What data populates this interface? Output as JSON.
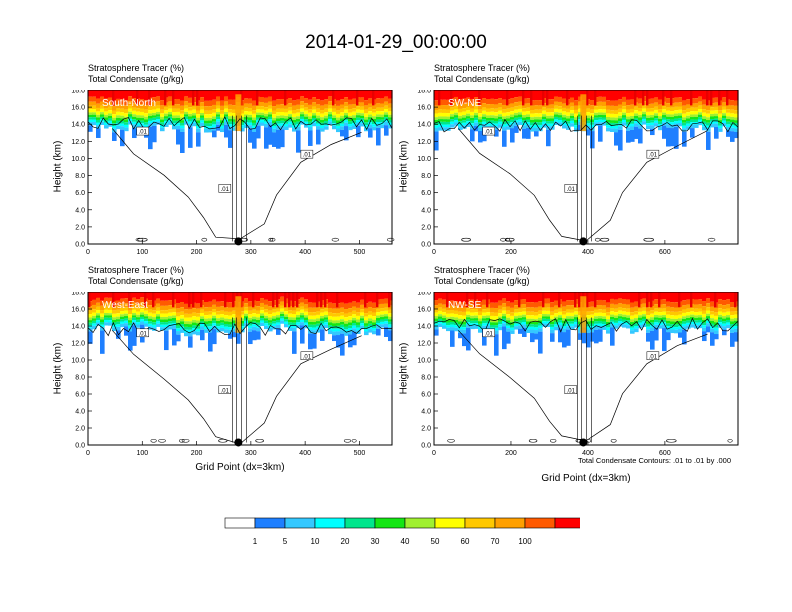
{
  "title": "2014-01-29_00:00:00",
  "header_line1": "Stratosphere Tracer   (%)",
  "header_line2": "Total Condensate   (g/kg)",
  "y_axis_label": "Height (km)",
  "x_axis_label": "Grid Point (dx=3km)",
  "contour_note": "Total Condensate Contours: .01 to .01 by .000",
  "contour_label": ".01",
  "colors": [
    "#ffffff",
    "#1e7fff",
    "#34c8ff",
    "#00ffff",
    "#00e68c",
    "#14e614",
    "#a0f030",
    "#ffff00",
    "#ffc800",
    "#ffa000",
    "#ff5a00",
    "#ff0000"
  ],
  "chart_data": [
    {
      "type": "heatmap",
      "panel_label": "South-North",
      "x_ticks": [
        0,
        100,
        200,
        300,
        400,
        500
      ],
      "xlim": [
        0,
        560
      ],
      "y_ticks": [
        "0.0",
        "2.0",
        "4.0",
        "6.0",
        "8.0",
        "10.0",
        "12.0",
        "14.0",
        "16.0",
        "18.0"
      ],
      "ylim": [
        0,
        18
      ],
      "marker_x": 277,
      "cloud_top_km": 14.5
    },
    {
      "type": "heatmap",
      "panel_label": "SW-NE",
      "x_ticks": [
        0,
        200,
        400,
        600
      ],
      "xlim": [
        0,
        790
      ],
      "y_ticks": [
        "0.0",
        "2.0",
        "4.0",
        "6.0",
        "8.0",
        "10.0",
        "12.0",
        "14.0",
        "16.0",
        "18.0"
      ],
      "ylim": [
        0,
        18
      ],
      "marker_x": 388,
      "cloud_top_km": 14.3
    },
    {
      "type": "heatmap",
      "panel_label": "West-East",
      "x_ticks": [
        0,
        100,
        200,
        300,
        400,
        500
      ],
      "xlim": [
        0,
        560
      ],
      "y_ticks": [
        "0.0",
        "2.0",
        "4.0",
        "6.0",
        "8.0",
        "10.0",
        "12.0",
        "14.0",
        "16.0",
        "18.0"
      ],
      "ylim": [
        0,
        18
      ],
      "marker_x": 277,
      "cloud_top_km": 14.0
    },
    {
      "type": "heatmap",
      "panel_label": "NW-SE",
      "x_ticks": [
        0,
        200,
        400,
        600
      ],
      "xlim": [
        0,
        790
      ],
      "y_ticks": [
        "0.0",
        "2.0",
        "4.0",
        "6.0",
        "8.0",
        "10.0",
        "12.0",
        "14.0",
        "16.0",
        "18.0"
      ],
      "ylim": [
        0,
        18
      ],
      "marker_x": 388,
      "cloud_top_km": 14.5
    }
  ],
  "colorbar": {
    "labels": [
      "1",
      "5",
      "10",
      "20",
      "30",
      "40",
      "50",
      "60",
      "70",
      "100"
    ]
  }
}
